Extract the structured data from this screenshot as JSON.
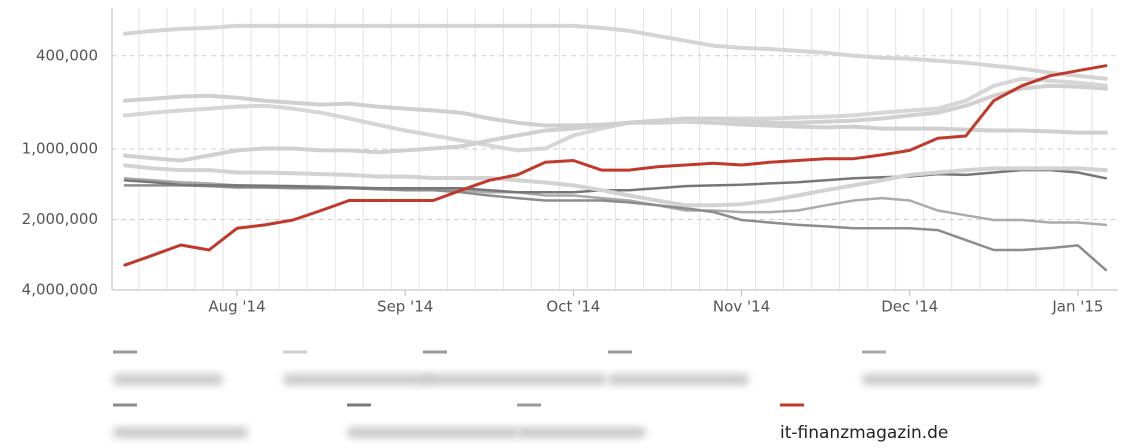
{
  "chart_data": {
    "type": "line",
    "log_scale": true,
    "grid": true,
    "categories": [
      null,
      null,
      null,
      null,
      "Aug '14",
      null,
      null,
      null,
      null,
      null,
      "Sep '14",
      null,
      null,
      null,
      null,
      null,
      "Oct '14",
      null,
      null,
      null,
      null,
      null,
      "Nov '14",
      null,
      null,
      null,
      null,
      null,
      "Dec '14",
      null,
      null,
      null,
      null,
      null,
      "Jan '15",
      null
    ],
    "ylim": [
      4000000,
      250000
    ],
    "yticks": [
      {
        "value": 400000,
        "label": "400,000"
      },
      {
        "value": 1000000,
        "label": "1,000,000"
      },
      {
        "value": 2000000,
        "label": "2,000,000"
      },
      {
        "value": 4000000,
        "label": "4,000,000"
      }
    ],
    "series": [
      {
        "color": "#d4d4d4",
        "values": [
          322000,
          313000,
          307000,
          304000,
          298000,
          298000,
          298000,
          298000,
          298000,
          298000,
          298000,
          298000,
          298000,
          298000,
          298000,
          298000,
          298000,
          304000,
          313000,
          329000,
          345000,
          362000,
          370000,
          374000,
          381000,
          388000,
          400000,
          408000,
          412000,
          420000,
          428000,
          441000,
          454000,
          472000,
          487000,
          501000
        ]
      },
      {
        "color": "#cfcfcf",
        "values": [
          622000,
          610000,
          597000,
          592000,
          604000,
          622000,
          634000,
          646000,
          640000,
          659000,
          672000,
          685000,
          700000,
          741000,
          772000,
          794000,
          794000,
          787000,
          772000,
          772000,
          764000,
          772000,
          787000,
          794000,
          802000,
          809000,
          802000,
          818000,
          818000,
          818000,
          826000,
          834000,
          834000,
          841000,
          851000,
          851000
        ]
      },
      {
        "color": "#d6d6d6",
        "values": [
          719000,
          700000,
          685000,
          672000,
          659000,
          653000,
          672000,
          700000,
          741000,
          787000,
          834000,
          875000,
          920000,
          966000,
          1014000,
          995000,
          875000,
          818000,
          772000,
          756000,
          756000,
          741000,
          741000,
          741000,
          734000,
          727000,
          719000,
          700000,
          685000,
          672000,
          622000,
          537000,
          501000,
          511000,
          521000,
          537000
        ]
      },
      {
        "color": "#d0d0d0",
        "values": [
          1066000,
          1096000,
          1120000,
          1066000,
          1014000,
          995000,
          995000,
          1014000,
          1014000,
          1033000,
          1014000,
          995000,
          975000,
          920000,
          875000,
          834000,
          818000,
          794000,
          772000,
          756000,
          741000,
          741000,
          756000,
          772000,
          772000,
          764000,
          756000,
          741000,
          719000,
          700000,
          653000,
          592000,
          552000,
          537000,
          542000,
          552000
        ]
      },
      {
        "color": "#aaaaaa",
        "values": [
          1334000,
          1360000,
          1387000,
          1402000,
          1430000,
          1430000,
          1440000,
          1440000,
          1460000,
          1470000,
          1470000,
          1500000,
          1500000,
          1530000,
          1530000,
          1580000,
          1580000,
          1620000,
          1660000,
          1740000,
          1830000,
          1830000,
          1860000,
          1860000,
          1830000,
          1740000,
          1660000,
          1620000,
          1660000,
          1830000,
          1920000,
          2010000,
          2010000,
          2060000,
          2060000,
          2110000
        ]
      },
      {
        "color": "#8c8c8c",
        "values": [
          1430000,
          1430000,
          1430000,
          1440000,
          1460000,
          1460000,
          1470000,
          1470000,
          1470000,
          1485000,
          1500000,
          1500000,
          1530000,
          1580000,
          1620000,
          1660000,
          1660000,
          1660000,
          1690000,
          1740000,
          1790000,
          1860000,
          2010000,
          2060000,
          2110000,
          2140000,
          2180000,
          2180000,
          2180000,
          2220000,
          2450000,
          2700000,
          2700000,
          2650000,
          2580000,
          3290000
        ]
      },
      {
        "color": "#777777",
        "values": [
          1360000,
          1387000,
          1420000,
          1430000,
          1430000,
          1440000,
          1440000,
          1460000,
          1460000,
          1470000,
          1470000,
          1470000,
          1470000,
          1500000,
          1530000,
          1530000,
          1530000,
          1500000,
          1500000,
          1470000,
          1440000,
          1430000,
          1420000,
          1402000,
          1387000,
          1360000,
          1334000,
          1320000,
          1310000,
          1280000,
          1290000,
          1260000,
          1230000,
          1230000,
          1260000,
          1334000
        ]
      },
      {
        "color": "#d2d2d2",
        "values": [
          1175000,
          1210000,
          1230000,
          1230000,
          1260000,
          1260000,
          1270000,
          1280000,
          1290000,
          1310000,
          1310000,
          1330000,
          1330000,
          1330000,
          1360000,
          1390000,
          1430000,
          1500000,
          1580000,
          1660000,
          1740000,
          1740000,
          1720000,
          1660000,
          1580000,
          1500000,
          1430000,
          1360000,
          1290000,
          1260000,
          1230000,
          1210000,
          1210000,
          1210000,
          1210000,
          1230000
        ]
      },
      {
        "name": "it-finanzmagazin.de",
        "color": "#c0392b",
        "values": [
          3130000,
          2840000,
          2570000,
          2700000,
          2180000,
          2110000,
          2010000,
          1830000,
          1660000,
          1660000,
          1660000,
          1660000,
          1500000,
          1360000,
          1290000,
          1140000,
          1120000,
          1230000,
          1230000,
          1190000,
          1170000,
          1150000,
          1170000,
          1140000,
          1120000,
          1100000,
          1100000,
          1060000,
          1014000,
          900000,
          880000,
          622000,
          537000,
          487000,
          463000,
          441000
        ]
      }
    ]
  }
}
